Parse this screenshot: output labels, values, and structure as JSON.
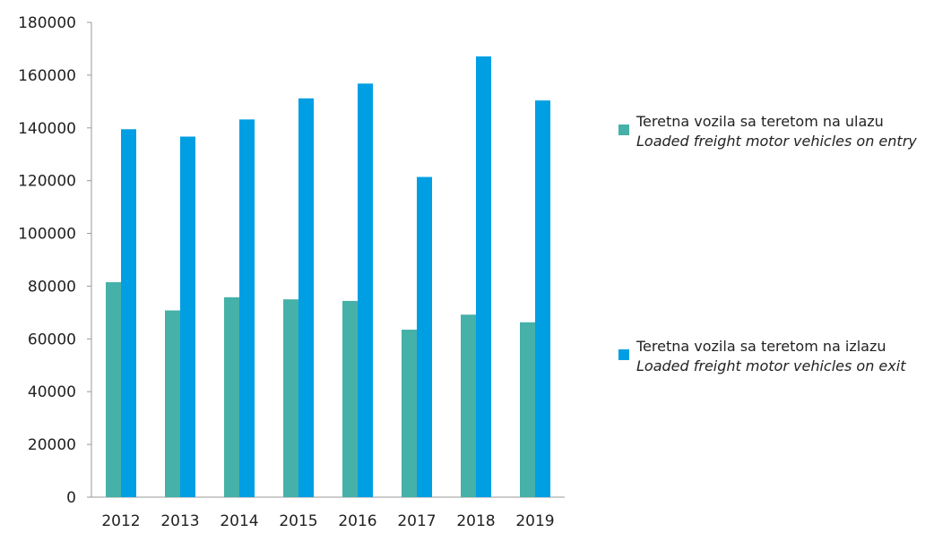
{
  "chart_data": {
    "type": "bar",
    "categories": [
      "2012",
      "2013",
      "2014",
      "2015",
      "2016",
      "2017",
      "2018",
      "2019"
    ],
    "series": [
      {
        "name": "Teretna vozila sa teretom na ulazu",
        "name_en": "Loaded freight motor vehicles on entry",
        "color": "#45b1a8",
        "values": [
          81500,
          70800,
          75800,
          75000,
          74400,
          63500,
          69200,
          66300
        ]
      },
      {
        "name": "Teretna vozila sa teretom na izlazu",
        "name_en": "Loaded freight motor vehicles on exit",
        "color": "#009fe3",
        "values": [
          139500,
          136700,
          143200,
          151200,
          156800,
          121400,
          167100,
          150400
        ]
      }
    ],
    "yticks": [
      "0",
      "20000",
      "40000",
      "60000",
      "80000",
      "100000",
      "120000",
      "140000",
      "160000",
      "180000"
    ],
    "ylim": [
      0,
      180000
    ],
    "grid": false,
    "legend_position": "right"
  }
}
